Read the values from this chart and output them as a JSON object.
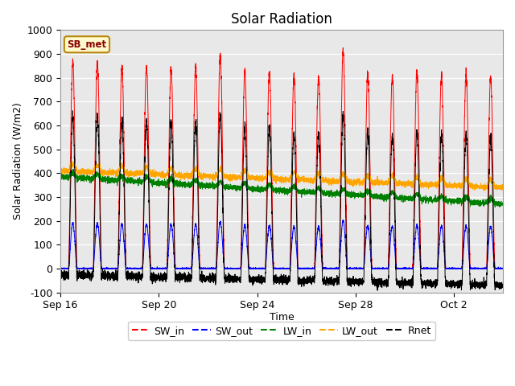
{
  "title": "Solar Radiation",
  "ylabel": "Solar Radiation (W/m2)",
  "xlabel": "Time",
  "ylim": [
    -100,
    1000
  ],
  "yticks": [
    -100,
    0,
    100,
    200,
    300,
    400,
    500,
    600,
    700,
    800,
    900,
    1000
  ],
  "fig_bg": "#ffffff",
  "plot_bg": "#e8e8e8",
  "legend_labels": [
    "SW_in",
    "SW_out",
    "LW_in",
    "LW_out",
    "Rnet"
  ],
  "legend_colors": [
    "red",
    "blue",
    "green",
    "orange",
    "black"
  ],
  "station_label": "SB_met",
  "num_days": 18,
  "tick_positions": [
    0,
    4,
    8,
    12,
    16
  ],
  "tick_labels": [
    "Sep 16",
    "Sep 20",
    "Sep 24",
    "Sep 28",
    "Oct 2"
  ],
  "peak_sw_in": [
    870,
    865,
    845,
    850,
    840,
    850,
    895,
    830,
    825,
    805,
    800,
    910,
    820,
    810,
    820,
    810,
    810,
    800
  ]
}
